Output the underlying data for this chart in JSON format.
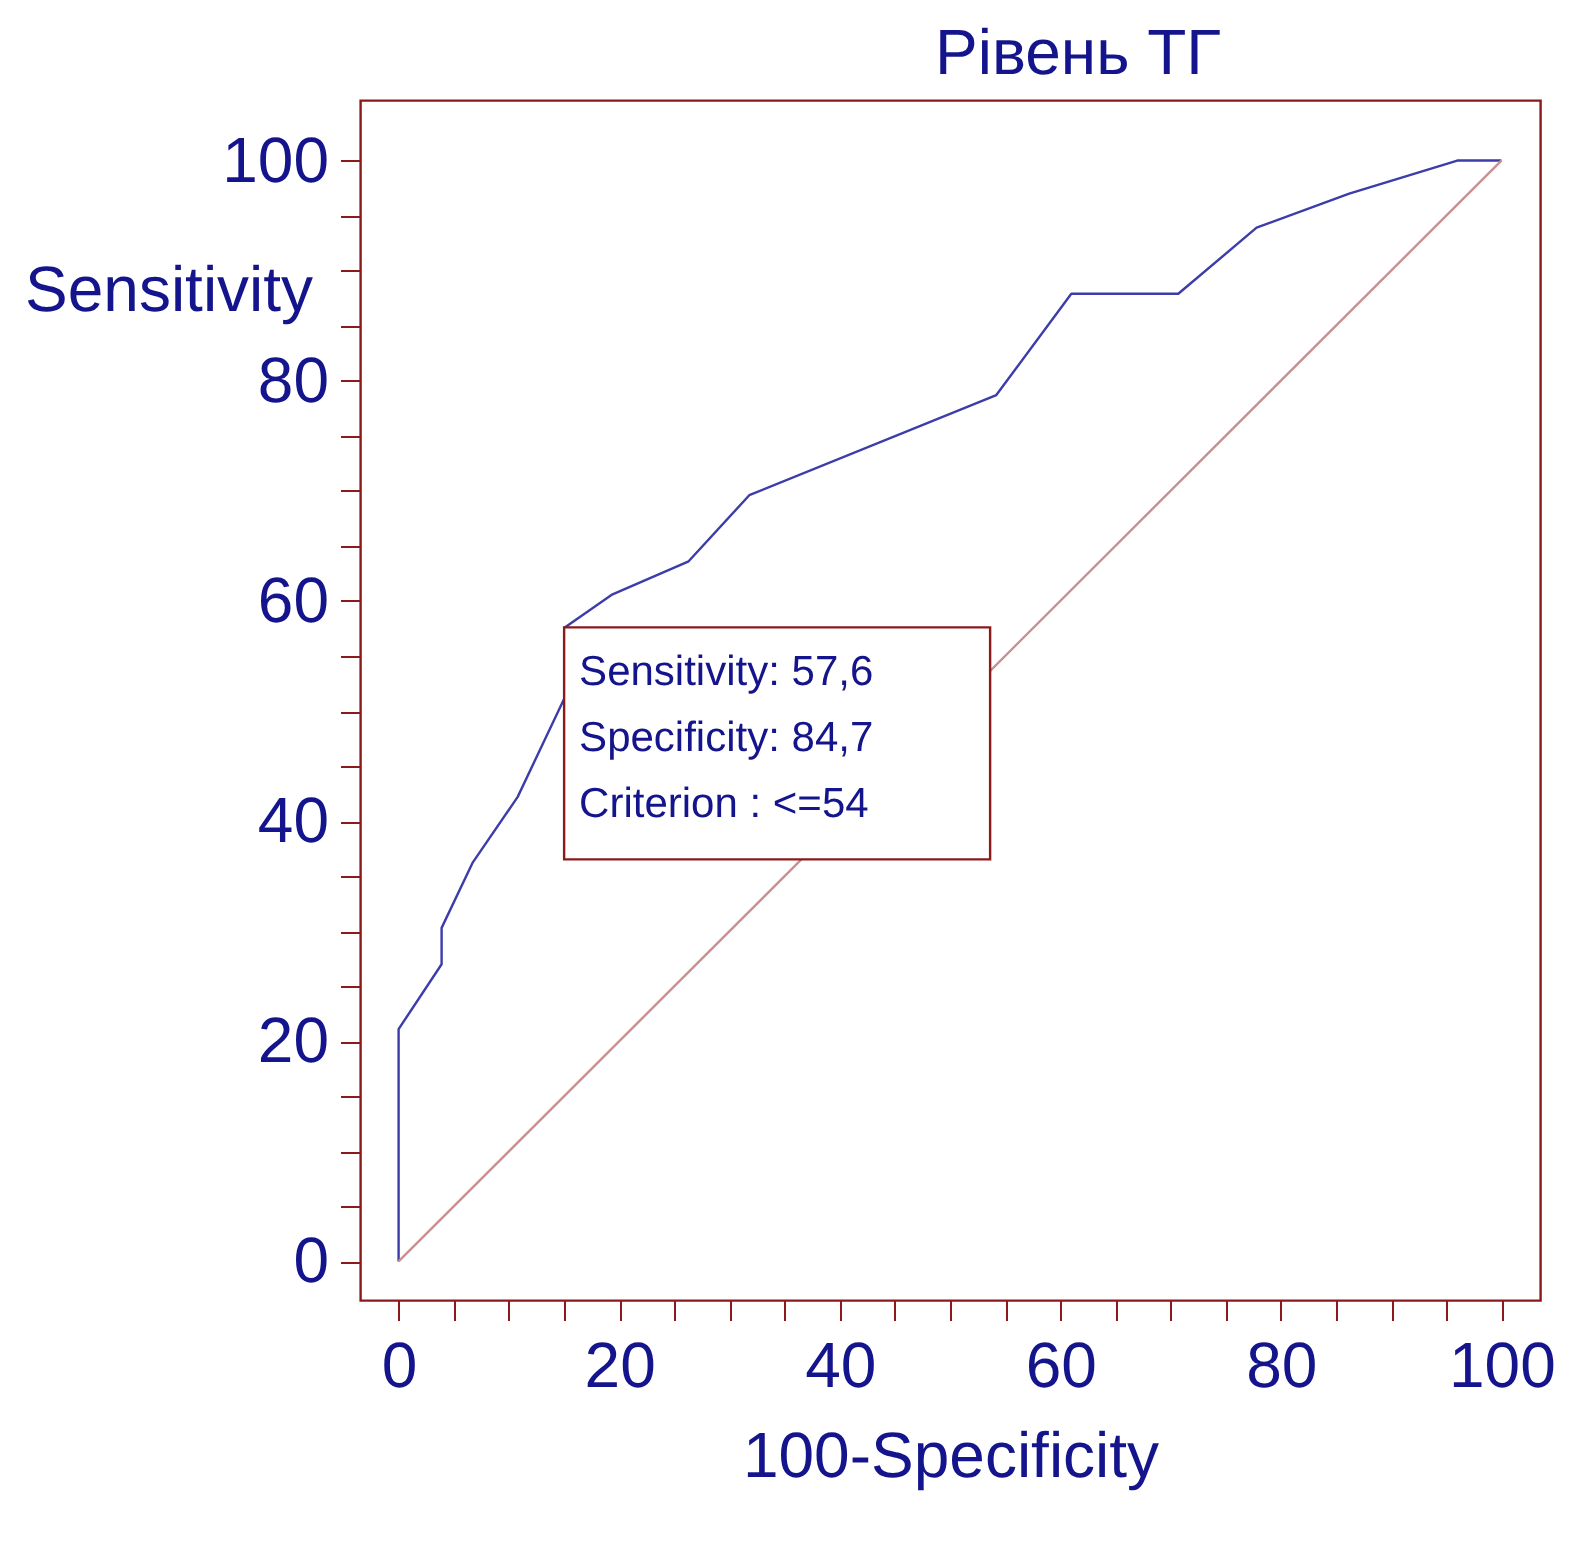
{
  "chart_data": {
    "type": "line",
    "title": "Рівень ТГ",
    "xlabel": "100-Specificity",
    "ylabel": "Sensitivity",
    "series": [
      {
        "color": "#3c3caa",
        "x": [
          0,
          0,
          3.9,
          3.9,
          6.7,
          10.8,
          15.1,
          15.1,
          19.4,
          26.3,
          31.8,
          54.2,
          61.0,
          70.7,
          77.8,
          86.2,
          96.0,
          100
        ],
        "values": [
          0,
          21.1,
          27.0,
          30.3,
          36.2,
          42.2,
          51.3,
          57.6,
          60.6,
          63.6,
          69.6,
          78.7,
          87.9,
          87.9,
          93.9,
          97.0,
          100,
          100
        ]
      },
      {
        "color": "#c89090",
        "x": [
          0,
          100
        ],
        "values": [
          0,
          100
        ]
      }
    ],
    "annotations": [
      {
        "text": "Sensitivity: 57,6\nSpecificity: 84,7\nCriterion : <=54",
        "x": 15.1,
        "y": 57.6
      }
    ],
    "xlim": [
      -3.5,
      103.5
    ],
    "ylim": [
      -3.5,
      105.5
    ],
    "xticks": [
      0,
      {
        "value": 5,
        "label": null
      },
      {
        "value": 10,
        "label": null
      },
      {
        "value": 15,
        "label": null
      },
      20,
      {
        "value": 25,
        "label": null
      },
      {
        "value": 30,
        "label": null
      },
      {
        "value": 35,
        "label": null
      },
      40,
      {
        "value": 45,
        "label": null
      },
      {
        "value": 50,
        "label": null
      },
      {
        "value": 55,
        "label": null
      },
      60,
      {
        "value": 65,
        "label": null
      },
      {
        "value": 70,
        "label": null
      },
      {
        "value": 75,
        "label": null
      },
      80,
      {
        "value": 85,
        "label": null
      },
      {
        "value": 90,
        "label": null
      },
      {
        "value": 95,
        "label": null
      },
      100
    ],
    "yticks": [
      0,
      {
        "value": 5,
        "label": null
      },
      {
        "value": 10,
        "label": null
      },
      {
        "value": 15,
        "label": null
      },
      20,
      {
        "value": 25,
        "label": null
      },
      {
        "value": 30,
        "label": null
      },
      {
        "value": 35,
        "label": null
      },
      40,
      {
        "value": 45,
        "label": null
      },
      {
        "value": 50,
        "label": null
      },
      {
        "value": 55,
        "label": null
      },
      60,
      {
        "value": 65,
        "label": null
      },
      {
        "value": 70,
        "label": null
      },
      {
        "value": 75,
        "label": null
      },
      80,
      {
        "value": 85,
        "label": null
      },
      {
        "value": 90,
        "label": null
      },
      {
        "value": 95,
        "label": null
      },
      100
    ],
    "grid": false,
    "marker": "none",
    "line_style": "solid"
  }
}
